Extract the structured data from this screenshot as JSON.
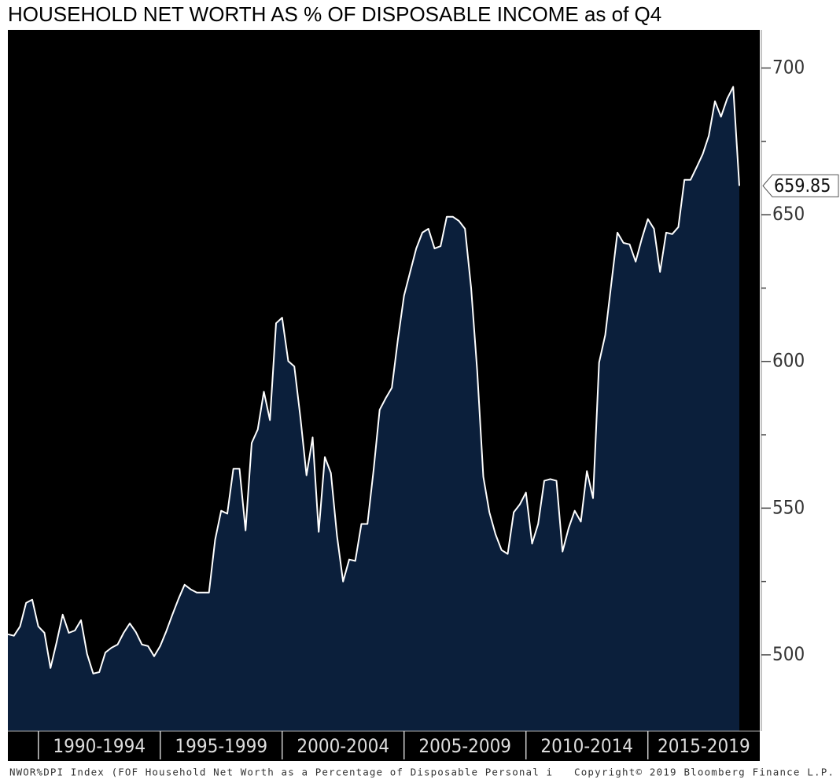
{
  "chart_data": {
    "type": "area",
    "title": "HOUSEHOLD NET WORTH AS % OF DISPOSABLE INCOME as of Q4",
    "source": "NWOR%DPI Index (FOF Household Net Worth as a Percentage of Disposable Personal i",
    "copyright": "Copyright© 2019 Bloomberg Finance L.P.",
    "x": [
      1988.75,
      1989,
      1989.25,
      1989.5,
      1989.75,
      1990,
      1990.25,
      1990.5,
      1990.75,
      1991,
      1991.25,
      1991.5,
      1991.75,
      1992,
      1992.25,
      1992.5,
      1992.75,
      1993,
      1993.25,
      1993.5,
      1993.75,
      1994,
      1994.25,
      1994.5,
      1994.75,
      1995,
      1995.25,
      1995.5,
      1995.75,
      1996,
      1996.25,
      1996.5,
      1996.75,
      1997,
      1997.25,
      1997.5,
      1997.75,
      1998,
      1998.25,
      1998.5,
      1998.75,
      1999,
      1999.25,
      1999.5,
      1999.75,
      2000,
      2000.25,
      2000.5,
      2000.75,
      2001,
      2001.25,
      2001.5,
      2001.75,
      2002,
      2002.25,
      2002.5,
      2002.75,
      2003,
      2003.25,
      2003.5,
      2003.75,
      2004,
      2004.25,
      2004.5,
      2004.75,
      2005,
      2005.25,
      2005.5,
      2005.75,
      2006,
      2006.25,
      2006.5,
      2006.75,
      2007,
      2007.25,
      2007.5,
      2007.75,
      2008,
      2008.25,
      2008.5,
      2008.75,
      2009,
      2009.25,
      2009.5,
      2009.75,
      2010,
      2010.25,
      2010.5,
      2010.75,
      2011,
      2011.25,
      2011.5,
      2011.75,
      2012,
      2012.25,
      2012.5,
      2012.75,
      2013,
      2013.25,
      2013.5,
      2013.75,
      2014,
      2014.25,
      2014.5,
      2014.75,
      2015,
      2015.25,
      2015.5,
      2015.75,
      2016,
      2016.25,
      2016.5,
      2016.75,
      2017,
      2017.25,
      2017.5,
      2017.75,
      2018,
      2018.25,
      2018.5,
      2018.75
    ],
    "series": [
      {
        "name": "NWOR%DPI Index",
        "color": "#ffffff",
        "fill": "#0b1f3b",
        "values": [
          507,
          506.5,
          509.7,
          517.7,
          518.8,
          509.7,
          507.5,
          495.5,
          504.3,
          513.7,
          507.5,
          508.3,
          511.8,
          500.3,
          493.6,
          494.1,
          500.8,
          502.4,
          503.5,
          507.5,
          510.7,
          507.8,
          503.5,
          503,
          499.5,
          503,
          508.1,
          513.7,
          519.1,
          523.9,
          522.3,
          521.2,
          521.2,
          521.2,
          539.2,
          549.1,
          548.1,
          563.4,
          563.4,
          542.4,
          572.2,
          576.8,
          589.7,
          580,
          613,
          614.9,
          600.1,
          598.3,
          580.8,
          561.2,
          574.1,
          541.9,
          567.4,
          562,
          540.5,
          525,
          532.5,
          532,
          544.6,
          544.6,
          563,
          583.5,
          587.5,
          591,
          607.7,
          622.4,
          630.5,
          638.5,
          643.9,
          645.2,
          638.5,
          639.3,
          649.3,
          649.3,
          647.9,
          645.2,
          625.1,
          596.9,
          560.7,
          548.6,
          541.1,
          535.7,
          534.4,
          548.6,
          551.3,
          555.3,
          537.9,
          544.6,
          559.3,
          559.9,
          559.3,
          535.2,
          543.2,
          549.1,
          545.4,
          562.6,
          553.4,
          599.6,
          609,
          626.4,
          643.9,
          640.4,
          639.9,
          634,
          641.8,
          648.5,
          645.2,
          630.5,
          643.9,
          643.4,
          645.8,
          661.9,
          661.9,
          666.2,
          670.7,
          676.9,
          688.7,
          683.4,
          689.5,
          693.6,
          659.85
        ]
      }
    ],
    "xlim": [
      1988.75,
      2019.59
    ],
    "xticks": [
      {
        "value": 1990,
        "label": "1990-1994"
      },
      {
        "value": 1995,
        "label": "1995-1999"
      },
      {
        "value": 2000,
        "label": "2000-2004"
      },
      {
        "value": 2005,
        "label": "2005-2009"
      },
      {
        "value": 2010,
        "label": "2010-2014"
      },
      {
        "value": 2015,
        "label": "2015-2019"
      }
    ],
    "ylim": [
      474,
      713
    ],
    "yticks": [
      500,
      550,
      600,
      650,
      700
    ],
    "yminorticks": [
      525,
      575,
      625,
      675
    ]
  }
}
